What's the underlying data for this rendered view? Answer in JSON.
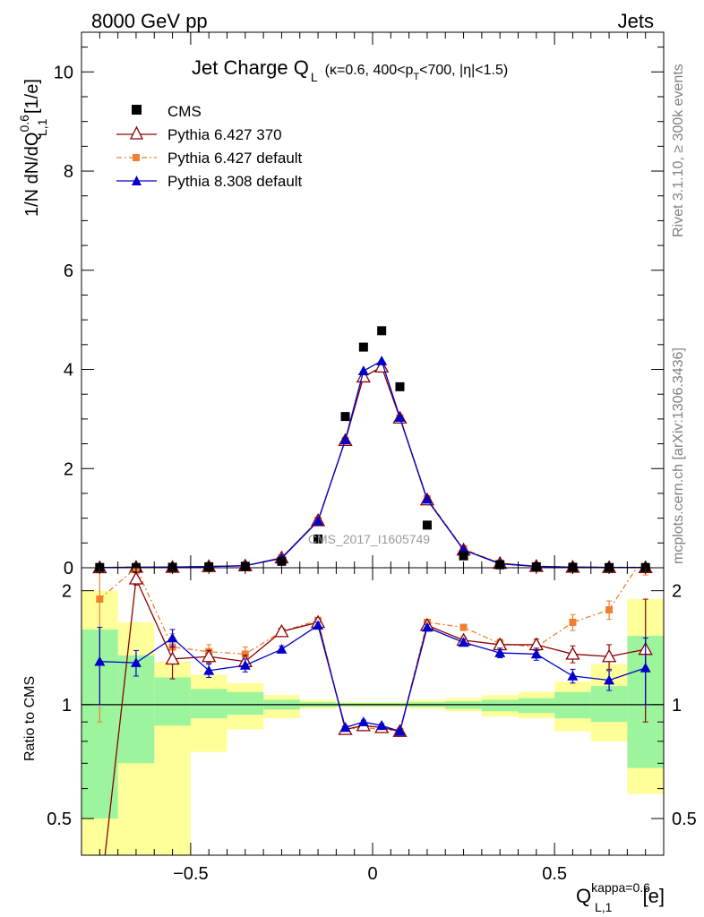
{
  "header": {
    "energy_label": "8000 GeV pp",
    "process_label": "Jets"
  },
  "side_labels": {
    "rivet": "Rivet 3.1.10, ≥ 300k events",
    "mcplots": "mcplots.cern.ch [arXiv:1306.3436]"
  },
  "watermark": "CMS_2017_I1605749",
  "main_panel": {
    "title_main": "Jet Charge Q",
    "title_sub": "L",
    "title_extra": "(κ=0.6, 400<p",
    "title_extra_sub": "T",
    "title_extra_tail": "<700, |η|<1.5)",
    "ylabel": "1/N dN/dQ",
    "ylabel_sup": "0.6",
    "ylabel_sub": "L,1",
    "ylabel_tail": " [1/e]",
    "y_ticks": [
      "0",
      "2",
      "4",
      "6",
      "8",
      "10"
    ]
  },
  "ratio_panel": {
    "ylabel": "Ratio to CMS",
    "y_ticks": [
      "0.5",
      "1",
      "2"
    ]
  },
  "x_axis": {
    "label": "Q",
    "label_sup": "kappa=0.6",
    "label_sub": "L,1",
    "label_unit": " [e]",
    "ticks": [
      "−0.5",
      "0",
      "0.5"
    ]
  },
  "legend": {
    "cms": "CMS",
    "py6_370": "Pythia 6.427 370",
    "py6_def": "Pythia 6.427 default",
    "py8_def": "Pythia 8.308 default"
  },
  "colors": {
    "cms": "#000000",
    "py6_370": "#8b0000",
    "py6_def": "#f08030",
    "py8_def": "#0000cc",
    "band_inner": "#9cf59c",
    "band_outer": "#ffff99"
  },
  "chart_data": {
    "type": "line",
    "xlim": [
      -0.8,
      0.8
    ],
    "ylim_main": [
      0,
      10.8
    ],
    "ylim_ratio": [
      0.4,
      2.3
    ],
    "ratio_scale": "log",
    "bin_edges": [
      -0.8,
      -0.7,
      -0.6,
      -0.5,
      -0.4,
      -0.3,
      -0.2,
      -0.1,
      -0.05,
      0,
      0.05,
      0.1,
      0.2,
      0.3,
      0.4,
      0.5,
      0.6,
      0.7,
      0.8
    ],
    "x": [
      -0.75,
      -0.65,
      -0.55,
      -0.45,
      -0.35,
      -0.25,
      -0.15,
      -0.075,
      -0.025,
      0.025,
      0.075,
      0.15,
      0.25,
      0.35,
      0.45,
      0.55,
      0.65,
      0.75
    ],
    "series": [
      {
        "name": "CMS",
        "key": "cms",
        "values": [
          0.005,
          0.005,
          0.01,
          0.02,
          0.03,
          0.13,
          0.58,
          3.05,
          4.45,
          4.78,
          3.65,
          0.86,
          0.24,
          0.06,
          0.02,
          0.01,
          0.005,
          0.005
        ]
      },
      {
        "name": "Pythia 6.427 370",
        "key": "py6_370",
        "values": [
          0.003,
          0.012,
          0.01,
          0.025,
          0.04,
          0.2,
          0.95,
          2.57,
          3.85,
          4.05,
          3.02,
          1.37,
          0.36,
          0.09,
          0.03,
          0.012,
          0.006,
          0.005
        ]
      },
      {
        "name": "Pythia 6.427 default",
        "key": "py6_def",
        "values": [
          0.01,
          0.013,
          0.014,
          0.028,
          0.042,
          0.2,
          0.96,
          2.57,
          3.85,
          4.05,
          3.02,
          1.39,
          0.38,
          0.09,
          0.03,
          0.018,
          0.01,
          0.01
        ]
      },
      {
        "name": "Pythia 8.308 default",
        "key": "py8_def",
        "values": [
          0.007,
          0.007,
          0.015,
          0.025,
          0.04,
          0.19,
          0.94,
          2.58,
          3.97,
          4.17,
          3.03,
          1.38,
          0.36,
          0.08,
          0.025,
          0.012,
          0.006,
          0.006
        ]
      }
    ],
    "ratios": {
      "py6_370": [
        0.3,
        2.15,
        1.32,
        1.34,
        1.3,
        1.56,
        1.65,
        0.86,
        0.88,
        0.87,
        0.85,
        1.62,
        1.48,
        1.44,
        1.44,
        1.36,
        1.34,
        1.4
      ],
      "py6_def": [
        1.9,
        2.3,
        1.42,
        1.38,
        1.36,
        1.56,
        1.67,
        0.86,
        0.87,
        0.86,
        0.85,
        1.65,
        1.6,
        1.45,
        1.42,
        1.65,
        1.78,
        2.5
      ],
      "py8_def": [
        1.3,
        1.29,
        1.5,
        1.23,
        1.27,
        1.4,
        1.62,
        0.87,
        0.9,
        0.88,
        0.85,
        1.6,
        1.46,
        1.37,
        1.36,
        1.19,
        1.16,
        1.25
      ]
    },
    "ratio_err": {
      "py6_370": [
        0.0,
        0.08,
        0.15,
        0.05,
        0.05,
        0.03,
        0.03,
        0.01,
        0.01,
        0.01,
        0.01,
        0.03,
        0.03,
        0.04,
        0.05,
        0.07,
        0.1,
        0.5
      ],
      "py6_def": [
        1.0,
        0.15,
        0.12,
        0.06,
        0.06,
        0.03,
        0.03,
        0.01,
        0.01,
        0.01,
        0.01,
        0.03,
        0.03,
        0.04,
        0.05,
        0.08,
        0.1,
        0.3
      ],
      "py8_def": [
        0.3,
        0.1,
        0.08,
        0.05,
        0.05,
        0.03,
        0.03,
        0.01,
        0.01,
        0.01,
        0.01,
        0.03,
        0.03,
        0.04,
        0.05,
        0.05,
        0.07,
        0.25
      ]
    },
    "band_inner": {
      "lo": [
        0.5,
        0.7,
        0.88,
        0.92,
        0.94,
        0.97,
        0.985,
        0.99,
        0.99,
        0.99,
        0.99,
        0.985,
        0.975,
        0.96,
        0.95,
        0.92,
        0.9,
        0.68
      ],
      "hi": [
        1.58,
        1.35,
        1.18,
        1.1,
        1.08,
        1.03,
        1.015,
        1.01,
        1.01,
        1.01,
        1.01,
        1.015,
        1.02,
        1.03,
        1.04,
        1.08,
        1.12,
        1.52
      ]
    },
    "band_outer": {
      "lo": [
        0.35,
        0.35,
        0.35,
        0.75,
        0.86,
        0.92,
        0.975,
        0.985,
        0.985,
        0.985,
        0.985,
        0.975,
        0.96,
        0.93,
        0.92,
        0.85,
        0.8,
        0.58
      ],
      "hi": [
        2.0,
        1.65,
        1.3,
        1.2,
        1.14,
        1.06,
        1.03,
        1.015,
        1.015,
        1.015,
        1.015,
        1.03,
        1.04,
        1.06,
        1.08,
        1.15,
        1.28,
        1.9
      ]
    }
  }
}
